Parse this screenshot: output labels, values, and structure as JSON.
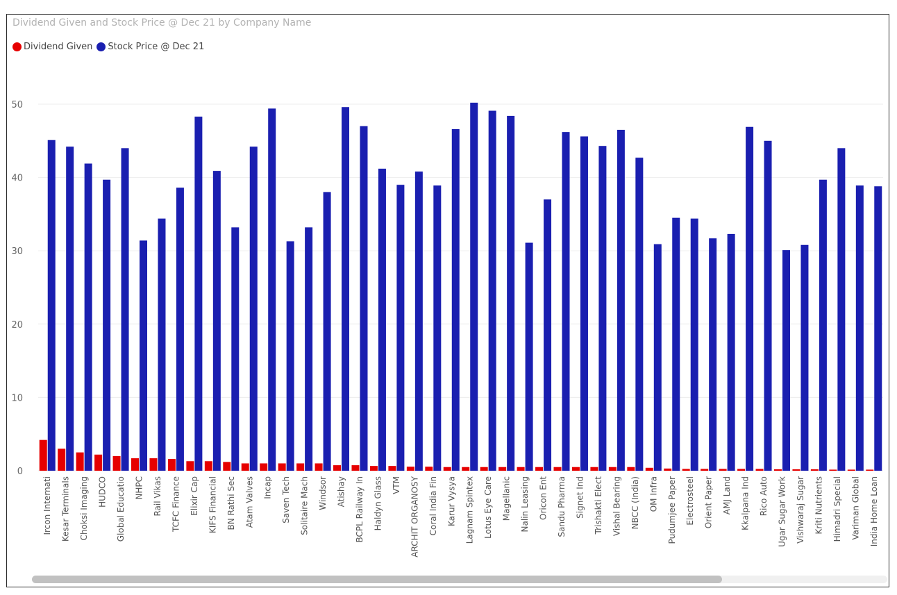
{
  "chart_data": {
    "type": "bar",
    "title": "Dividend Given and Stock Price @ Dec 21 by Company Name",
    "xlabel": "",
    "ylabel": "",
    "ylim": [
      0,
      50
    ],
    "yticks": [
      0,
      10,
      20,
      30,
      40,
      50
    ],
    "grid": true,
    "legend_position": "top-left",
    "categories": [
      "Ircon Internati",
      "Kesar Terminals",
      "Choksi Imaging",
      "HUDCO",
      "Global Educatio",
      "NHPC",
      "Rail Vikas",
      "TCFC Finance",
      "Elixir Cap",
      "KIFS Financial",
      "BN Rathi Sec",
      "Atam Valves",
      "Incap",
      "Saven Tech",
      "Solitaire Mach",
      "Windsor",
      "Atishay",
      "BCPL Railway In",
      "Haldyn Glass",
      "VTM",
      "ARCHIT ORGANOSY",
      "Coral India Fin",
      "Karur Vysya",
      "Lagnam Spintex",
      "Lotus Eye Care",
      "Magellanic",
      "Nalin Leasing",
      "Oricon Ent",
      "Sandu Pharma",
      "Signet Ind",
      "Trishakti Elect",
      "Vishal Bearing",
      "NBCC (India)",
      "OM Infra",
      "Pudumjee Paper",
      "Electrosteel",
      "Orient Paper",
      "AMJ Land",
      "Kkalpana Ind",
      "Rico Auto",
      "Ugar Sugar Work",
      "Vishwaraj Sugar",
      "Kriti Nutrients",
      "Himadri Special",
      "Variman Global",
      "India Home Loan"
    ],
    "series": [
      {
        "name": "Dividend Given",
        "color": "#e60000",
        "values": [
          4.2,
          3.0,
          2.5,
          2.2,
          2.0,
          1.7,
          1.7,
          1.6,
          1.3,
          1.3,
          1.2,
          1.0,
          1.0,
          1.0,
          1.0,
          1.0,
          0.75,
          0.75,
          0.65,
          0.65,
          0.55,
          0.55,
          0.5,
          0.5,
          0.5,
          0.5,
          0.5,
          0.5,
          0.5,
          0.5,
          0.5,
          0.5,
          0.5,
          0.4,
          0.3,
          0.25,
          0.25,
          0.25,
          0.25,
          0.25,
          0.2,
          0.2,
          0.2,
          0.15,
          0.15,
          0.15
        ]
      },
      {
        "name": "Stock Price @ Dec 21",
        "color": "#1a1fb0",
        "values": [
          45.1,
          44.2,
          41.9,
          39.7,
          44.0,
          31.4,
          34.4,
          38.6,
          48.3,
          40.9,
          33.2,
          44.2,
          49.4,
          31.3,
          33.2,
          38.0,
          49.6,
          47.0,
          41.2,
          39.0,
          40.8,
          38.9,
          46.6,
          50.2,
          49.1,
          48.4,
          31.1,
          37.0,
          46.2,
          45.6,
          44.3,
          46.5,
          42.7,
          30.9,
          34.5,
          34.4,
          31.7,
          32.3,
          46.9,
          45.0,
          30.1,
          30.8,
          39.7,
          44.0,
          38.9,
          38.8
        ]
      }
    ]
  }
}
